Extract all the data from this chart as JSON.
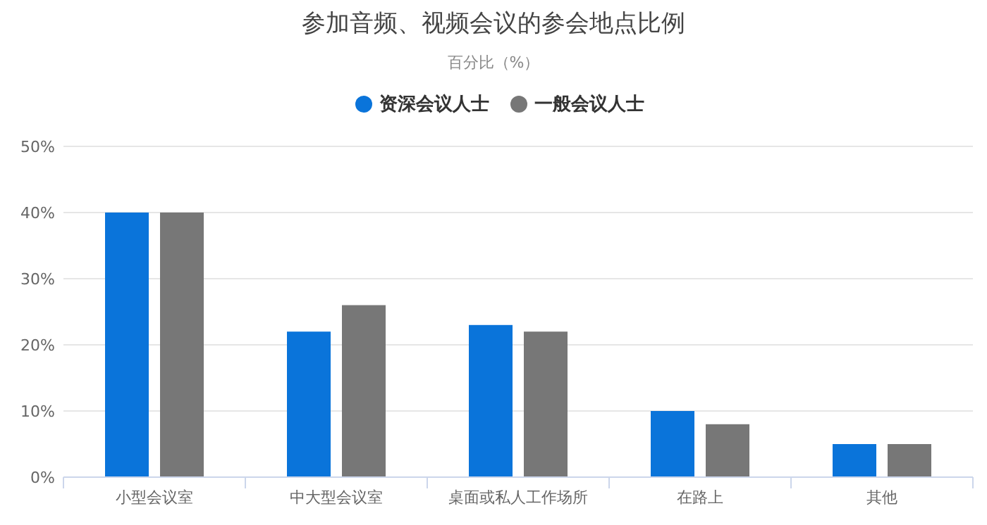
{
  "chart_data": {
    "type": "bar",
    "title": "参加音频、视频会议的参会地点比例",
    "subtitle": "百分比（%）",
    "categories": [
      "小型会议室",
      "中大型会议室",
      "桌面或私人工作场所",
      "在路上",
      "其他"
    ],
    "series": [
      {
        "name": "资深会议人士",
        "color": "#0a74da",
        "values": [
          40,
          22,
          23,
          10,
          5
        ]
      },
      {
        "name": "一般会议人士",
        "color": "#777777",
        "values": [
          40,
          26,
          22,
          8,
          5
        ]
      }
    ],
    "ylim": [
      0,
      50
    ],
    "yticks": [
      {
        "value": 0,
        "label": "0%"
      },
      {
        "value": 10,
        "label": "10%"
      },
      {
        "value": 20,
        "label": "20%"
      },
      {
        "value": 30,
        "label": "30%"
      },
      {
        "value": 40,
        "label": "40%"
      },
      {
        "value": 50,
        "label": "50%"
      }
    ],
    "grid": "y",
    "legend": "top"
  }
}
